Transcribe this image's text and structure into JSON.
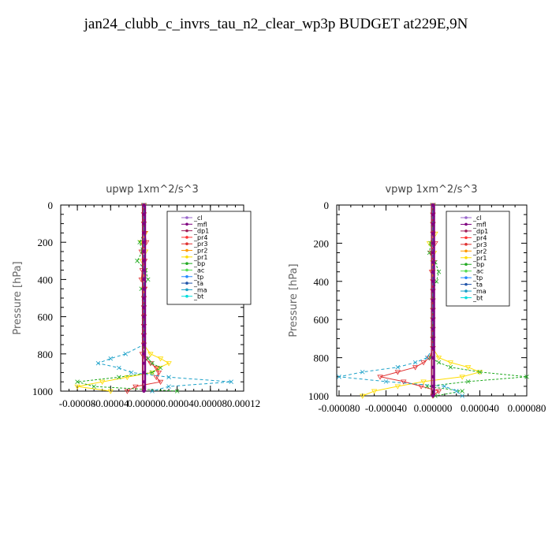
{
  "title": "jan24_clubb_c_invrs_tau_n2_clear_wp3p  BUDGET at229E,9N",
  "legend_items": [
    {
      "label": "_cl",
      "color": "#9966cc"
    },
    {
      "label": "_mfl",
      "color": "#800080"
    },
    {
      "label": "_dp1",
      "color": "#a0205a"
    },
    {
      "label": "_pr4",
      "color": "#ff3333"
    },
    {
      "label": "_pr3",
      "color": "#e03030"
    },
    {
      "label": "_pr2",
      "color": "#ff9900"
    },
    {
      "label": "_pr1",
      "color": "#ffdd00"
    },
    {
      "label": "_bp",
      "color": "#22aa22"
    },
    {
      "label": "_ac",
      "color": "#55dd55"
    },
    {
      "label": "_tp",
      "color": "#2288ff"
    },
    {
      "label": "_ta",
      "color": "#2255aa"
    },
    {
      "label": "_ma",
      "color": "#1aa0c8"
    },
    {
      "label": "_bt",
      "color": "#00dddd"
    }
  ],
  "chart_data": [
    {
      "type": "line",
      "title": "upwp   1xm^2/s^3",
      "ylabel": "Pressure [hPa]",
      "y_ticks": [
        "0",
        "200",
        "400",
        "600",
        "800",
        "1000"
      ],
      "x_ticks": [
        "-0.00008",
        "-0.00004",
        "0.00000",
        "0.00004",
        "0.00008",
        "0.00012"
      ],
      "xlim": [
        -0.0001,
        0.00012
      ],
      "ylim": [
        1000,
        0
      ],
      "legend_position": "top-right",
      "y": [
        0,
        50,
        100,
        150,
        200,
        250,
        300,
        350,
        400,
        450,
        500,
        550,
        600,
        650,
        700,
        750,
        800,
        825,
        850,
        875,
        900,
        925,
        950,
        975,
        1000
      ],
      "series": [
        {
          "label": "_pr1",
          "values": [
            0,
            0,
            0,
            2e-06,
            -3e-06,
            2e-06,
            -2e-06,
            1e-06,
            -1e-06,
            0,
            0,
            0,
            0,
            0,
            0,
            0,
            8e-06,
            2e-05,
            3e-05,
            1.8e-05,
            1e-05,
            -2e-05,
            -5e-05,
            -8e-05,
            -4e-05
          ]
        },
        {
          "label": "_pr3",
          "values": [
            0,
            0,
            0,
            1e-06,
            3e-06,
            -3e-06,
            1e-06,
            -2e-06,
            -3e-06,
            1e-06,
            0,
            0,
            0,
            0,
            0,
            0,
            -2e-06,
            2e-06,
            8e-06,
            1.5e-05,
            1.8e-05,
            1.5e-05,
            2e-05,
            -1e-05,
            -2e-05
          ]
        },
        {
          "label": "_bp",
          "values": [
            0,
            0,
            0,
            0,
            -5e-06,
            -2e-06,
            -8e-06,
            2e-06,
            5e-06,
            -3e-06,
            0,
            0,
            0,
            0,
            0,
            0,
            0,
            5e-06,
            1e-05,
            2e-05,
            1e-05,
            -3e-05,
            -8e-05,
            -6e-05,
            4e-05
          ]
        },
        {
          "label": "_ma",
          "values": [
            0,
            0,
            0,
            0,
            0,
            0,
            0,
            0,
            0,
            0,
            0,
            0,
            0,
            0,
            0,
            0,
            -2.2e-05,
            -4e-05,
            -5.5e-05,
            -3e-05,
            -1.5e-05,
            3e-05,
            0.000105,
            3e-05,
            1e-05
          ]
        }
      ],
      "bold_series_value": 0
    },
    {
      "type": "line",
      "title": "vpwp   1xm^2/s^3",
      "ylabel": "Pressure [hPa]",
      "y_ticks": [
        "0",
        "200",
        "400",
        "600",
        "800",
        "1000"
      ],
      "x_ticks": [
        "-0.000080",
        "-0.000040",
        "0.000000",
        "0.000040",
        "0.000080"
      ],
      "xlim": [
        -8.2e-05,
        8e-05
      ],
      "ylim": [
        1000,
        0
      ],
      "legend_position": "top-right",
      "y": [
        0,
        50,
        100,
        150,
        200,
        250,
        300,
        350,
        400,
        450,
        500,
        550,
        600,
        650,
        700,
        750,
        800,
        825,
        850,
        875,
        900,
        925,
        950,
        975,
        1000
      ],
      "series": [
        {
          "label": "_pr1",
          "values": [
            0,
            0,
            0,
            2e-06,
            -3e-06,
            1e-06,
            0,
            0,
            0,
            0,
            0,
            0,
            0,
            0,
            0,
            0,
            5e-06,
            1.5e-05,
            3e-05,
            4e-05,
            2.5e-05,
            -8e-06,
            -3e-05,
            -5e-05,
            -6e-05
          ]
        },
        {
          "label": "_pr3",
          "values": [
            0,
            0,
            0,
            0,
            2e-06,
            -2e-06,
            1e-06,
            -1e-06,
            0,
            0,
            0,
            0,
            0,
            0,
            0,
            0,
            -3e-06,
            -8e-06,
            -1.5e-05,
            -3e-05,
            -4.5e-05,
            -2.5e-05,
            -1e-05,
            5e-06,
            0
          ]
        },
        {
          "label": "_bp",
          "values": [
            0,
            0,
            0,
            0,
            -2e-06,
            -3e-06,
            2e-06,
            5e-06,
            3e-06,
            0,
            0,
            0,
            0,
            0,
            0,
            0,
            -2e-06,
            5e-06,
            1.5e-05,
            4e-05,
            8e-05,
            3e-05,
            -5e-06,
            2.5e-05,
            2e-06
          ]
        },
        {
          "label": "_ma",
          "values": [
            0,
            0,
            0,
            0,
            0,
            0,
            0,
            0,
            0,
            0,
            0,
            0,
            0,
            0,
            0,
            0,
            -5e-06,
            -1.5e-05,
            -3e-05,
            -6e-05,
            -8e-05,
            -4e-05,
            1e-05,
            2e-05,
            2.5e-05
          ]
        }
      ],
      "bold_series_value": 0
    }
  ]
}
